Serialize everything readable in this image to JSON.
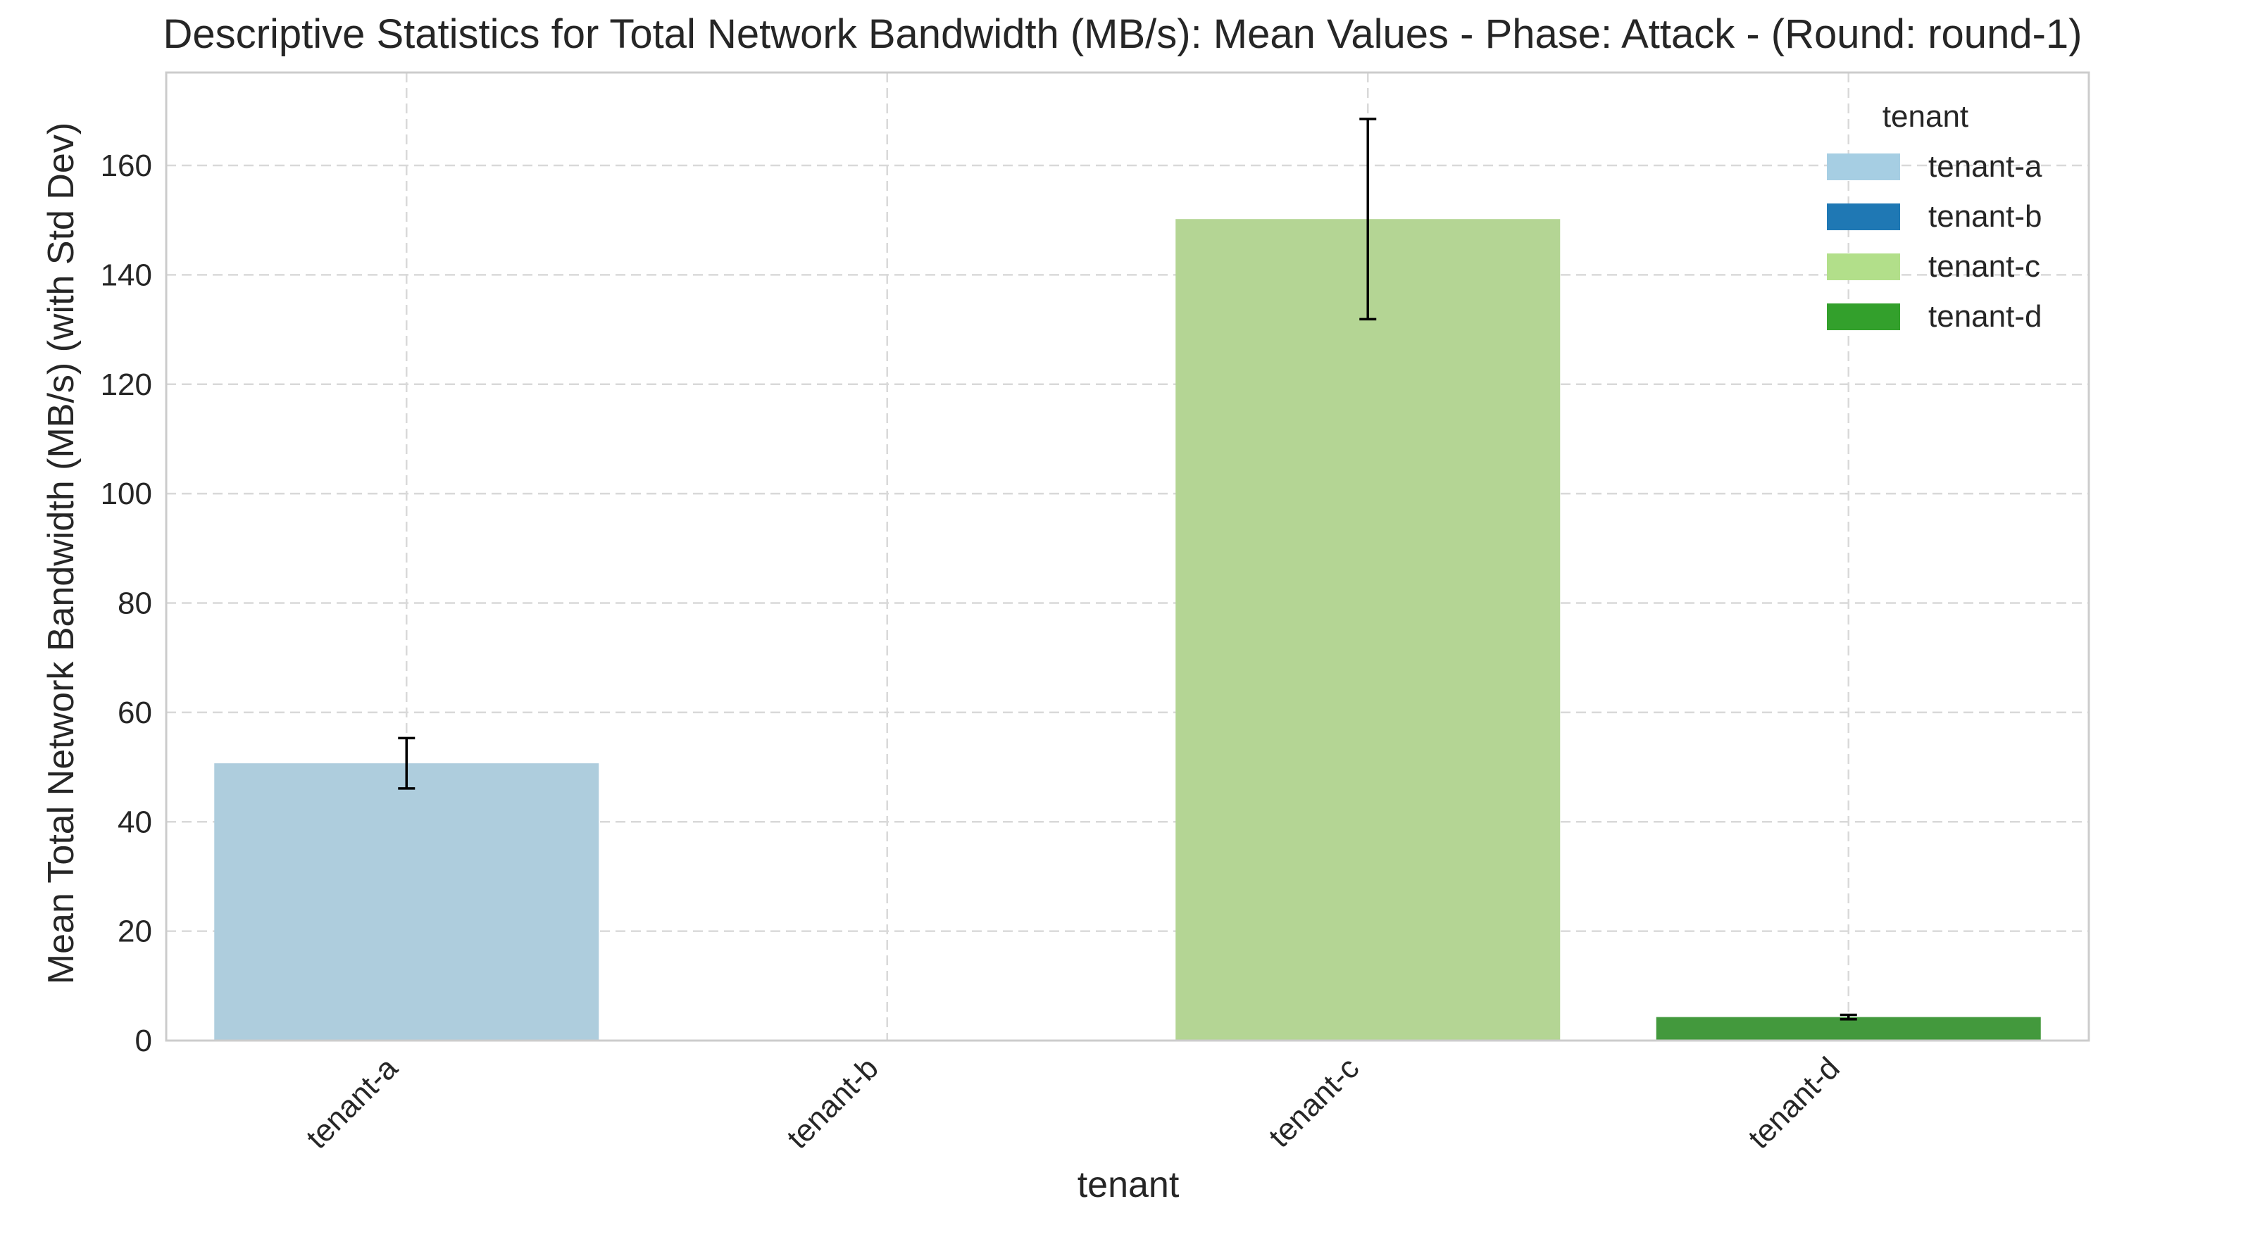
{
  "chart_data": {
    "type": "bar",
    "title": "Descriptive Statistics for Total Network Bandwidth (MB/s): Mean Values - Phase: Attack - (Round: round-1)",
    "xlabel": "tenant",
    "ylabel": "Mean Total Network Bandwidth (MB/s) (with Std Dev)",
    "categories": [
      "tenant-a",
      "tenant-b",
      "tenant-c",
      "tenant-d"
    ],
    "values": [
      50.7,
      0,
      150.2,
      4.3
    ],
    "errors": [
      4.6,
      0,
      18.3,
      0.4
    ],
    "bar_colors": [
      "#aecddd",
      "#1f78b4",
      "#b4d594",
      "#43993d"
    ],
    "ylim": [
      0,
      177
    ],
    "yticks": [
      0,
      20,
      40,
      60,
      80,
      100,
      120,
      140,
      160
    ],
    "ytick_labels": [
      "0",
      "20",
      "40",
      "60",
      "80",
      "100",
      "120",
      "140",
      "160"
    ],
    "grid": true,
    "legend": {
      "title": "tenant",
      "placement": "top-right",
      "entries": [
        {
          "label": "tenant-a",
          "color": "#a6cee3"
        },
        {
          "label": "tenant-b",
          "color": "#1f78b4"
        },
        {
          "label": "tenant-c",
          "color": "#b2df8a"
        },
        {
          "label": "tenant-d",
          "color": "#33a02c"
        }
      ]
    }
  }
}
